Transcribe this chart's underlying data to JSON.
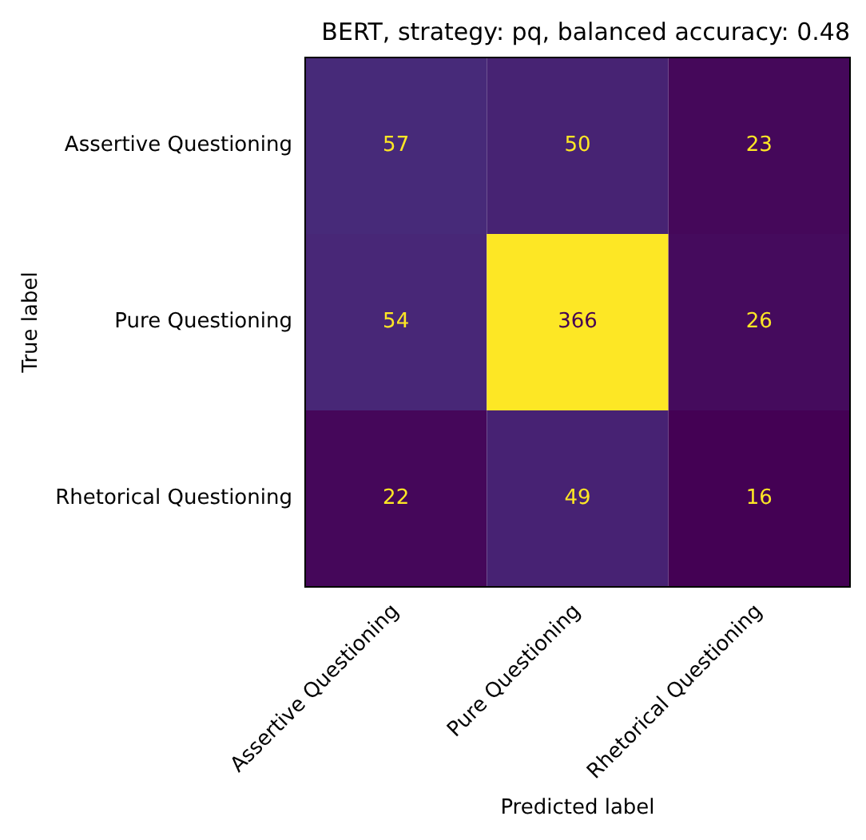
{
  "chart_data": {
    "type": "heatmap",
    "title": "BERT, strategy: pq, balanced accuracy: 0.48",
    "xlabel": "Predicted label",
    "ylabel": "True label",
    "categories": [
      "Assertive Questioning",
      "Pure Questioning",
      "Rhetorical Questioning"
    ],
    "y_categories": [
      "Assertive Questioning",
      "Pure Questioning",
      "Rhetorical Questioning"
    ],
    "cells": [
      [
        57,
        50,
        23
      ],
      [
        54,
        366,
        26
      ],
      [
        22,
        49,
        16
      ]
    ],
    "data_labels": true,
    "grid": false,
    "legend": false
  }
}
